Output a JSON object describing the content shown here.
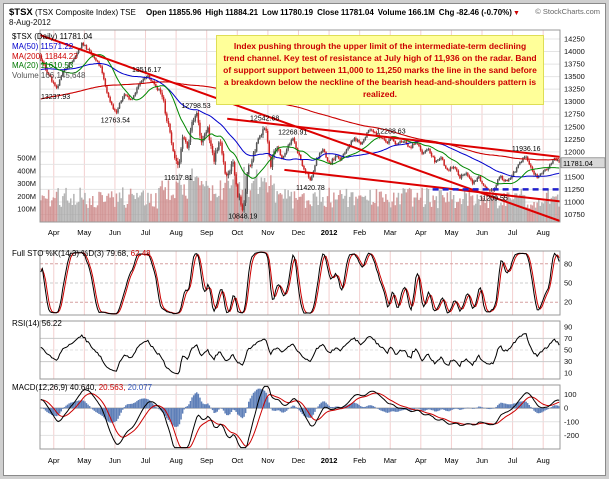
{
  "header": {
    "symbol": "$TSX",
    "name": "(TSX Composite Index) TSE",
    "date": "8-Aug-2012",
    "credit": "© StockCharts.com",
    "quote": [
      {
        "label": "Open",
        "value": "11855.96"
      },
      {
        "label": "High",
        "value": "11884.21"
      },
      {
        "label": "Low",
        "value": "11780.19"
      },
      {
        "label": "Close",
        "value": "11781.04"
      },
      {
        "label": "Volume",
        "value": "166.1M"
      },
      {
        "label": "Chg",
        "value": "-82.46 (-0.70%)",
        "direction": "down"
      }
    ]
  },
  "legend": {
    "rows": [
      {
        "name": "price",
        "label": "$TSX (Daily)",
        "value": "11781.04",
        "color": "#000000"
      },
      {
        "name": "ma50",
        "label": "MA(50)",
        "value": "11571.22",
        "color": "#0000cc"
      },
      {
        "name": "ma200",
        "label": "MA(200)",
        "value": "11844.23",
        "color": "#cc0000"
      },
      {
        "name": "ma20",
        "label": "MA(20)",
        "value": "11610.53",
        "color": "#007700"
      },
      {
        "name": "volume",
        "label": "Volume",
        "value": "166,145,648",
        "color": "#555555"
      }
    ]
  },
  "annotation": {
    "text": "Index pushing through the upper limit of the intermediate-term declining trend channel. Key test of resistance at July high of 11,936 on the radar. Band of support support between 11,000 to 11,250 marks the line in the sand before a breakdown below the neckline of the bearish head-and-shoulders pattern is realized.",
    "bg": "#ffff99",
    "color": "#cc0000"
  },
  "panels": {
    "sto": {
      "title": "Full STO %K(14,3) %D(3)",
      "values": [
        {
          "text": "79.68,",
          "color": "#000000"
        },
        {
          "text": "62.48",
          "color": "#cc0000"
        }
      ]
    },
    "rsi": {
      "title": "RSI(14)",
      "values": [
        {
          "text": "56.22",
          "color": "#000000"
        }
      ]
    },
    "macd": {
      "title": "MACD(12,26,9)",
      "values": [
        {
          "text": "40.640,",
          "color": "#000000"
        },
        {
          "text": "20.563,",
          "color": "#cc0000"
        },
        {
          "text": "20.077",
          "color": "#3355bb"
        }
      ]
    }
  },
  "chart_data": [
    {
      "type": "candlestick+volume",
      "title": "$TSX Daily with MA(20), MA(50), MA(200) and volume overlay",
      "x_labels": [
        "Apr",
        "May",
        "Jun",
        "Jul",
        "Aug",
        "Sep",
        "Oct",
        "Nov",
        "Dec",
        "2012",
        "Feb",
        "Mar",
        "Apr",
        "May",
        "Jun",
        "Jul",
        "Aug"
      ],
      "y_ticks": [
        14250,
        14000,
        13750,
        13500,
        13250,
        13000,
        12750,
        12500,
        12250,
        12000,
        11750,
        11500,
        11250,
        11000,
        10750
      ],
      "ylim": [
        10600,
        14430
      ],
      "volume_ticks": [
        "500M",
        "400M",
        "300M",
        "200M",
        "100M"
      ],
      "last_close": 11781.04,
      "price_anchors": [
        [
          0.0,
          13850
        ],
        [
          0.012,
          13600
        ],
        [
          0.03,
          13237.93
        ],
        [
          0.045,
          13650
        ],
        [
          0.065,
          13850
        ],
        [
          0.08,
          14180
        ],
        [
          0.1,
          13900
        ],
        [
          0.115,
          13700
        ],
        [
          0.13,
          13100
        ],
        [
          0.145,
          12763.54
        ],
        [
          0.16,
          13150
        ],
        [
          0.175,
          13050
        ],
        [
          0.19,
          13350
        ],
        [
          0.205,
          13516.17
        ],
        [
          0.22,
          13350
        ],
        [
          0.235,
          13100
        ],
        [
          0.248,
          12400
        ],
        [
          0.258,
          11900
        ],
        [
          0.266,
          11617.81
        ],
        [
          0.274,
          12350
        ],
        [
          0.282,
          12050
        ],
        [
          0.292,
          12550
        ],
        [
          0.3,
          12798.53
        ],
        [
          0.31,
          12200
        ],
        [
          0.322,
          12450
        ],
        [
          0.334,
          11850
        ],
        [
          0.345,
          12250
        ],
        [
          0.358,
          11450
        ],
        [
          0.37,
          11850
        ],
        [
          0.38,
          11150
        ],
        [
          0.39,
          10848.19
        ],
        [
          0.4,
          11650
        ],
        [
          0.412,
          12000
        ],
        [
          0.422,
          12300
        ],
        [
          0.432,
          12542.68
        ],
        [
          0.444,
          11750
        ],
        [
          0.455,
          12150
        ],
        [
          0.466,
          11850
        ],
        [
          0.476,
          12100
        ],
        [
          0.486,
          12268.91
        ],
        [
          0.497,
          11950
        ],
        [
          0.508,
          11650
        ],
        [
          0.52,
          11420.78
        ],
        [
          0.532,
          11850
        ],
        [
          0.544,
          12050
        ],
        [
          0.556,
          11750
        ],
        [
          0.568,
          11900
        ],
        [
          0.58,
          11850
        ],
        [
          0.592,
          12100
        ],
        [
          0.605,
          12250
        ],
        [
          0.618,
          12180
        ],
        [
          0.635,
          12460
        ],
        [
          0.65,
          12300
        ],
        [
          0.662,
          12280
        ],
        [
          0.668,
          12140
        ],
        [
          0.675,
          12288.63
        ],
        [
          0.685,
          12150
        ],
        [
          0.7,
          12230
        ],
        [
          0.712,
          12080
        ],
        [
          0.724,
          12200
        ],
        [
          0.736,
          11980
        ],
        [
          0.748,
          12060
        ],
        [
          0.76,
          11820
        ],
        [
          0.772,
          11900
        ],
        [
          0.784,
          11620
        ],
        [
          0.796,
          11720
        ],
        [
          0.808,
          11480
        ],
        [
          0.82,
          11580
        ],
        [
          0.832,
          11380
        ],
        [
          0.845,
          11500
        ],
        [
          0.858,
          11280
        ],
        [
          0.872,
          11209.55
        ],
        [
          0.885,
          11520
        ],
        [
          0.898,
          11400
        ],
        [
          0.91,
          11550
        ],
        [
          0.922,
          11750
        ],
        [
          0.935,
          11936.16
        ],
        [
          0.947,
          11620
        ],
        [
          0.958,
          11480
        ],
        [
          0.97,
          11600
        ],
        [
          0.982,
          11720
        ],
        [
          0.992,
          11860
        ],
        [
          1.0,
          11781.04
        ]
      ],
      "key_points": [
        {
          "label": "13237.93",
          "t": 0.03,
          "v": 13237.93,
          "side": "below"
        },
        {
          "label": "13516.17",
          "t": 0.205,
          "v": 13516.17,
          "side": "above"
        },
        {
          "label": "12763.54",
          "t": 0.145,
          "v": 12763.54,
          "side": "below"
        },
        {
          "label": "12798.53",
          "t": 0.3,
          "v": 12798.53,
          "side": "above"
        },
        {
          "label": "12542.68",
          "t": 0.432,
          "v": 12542.68,
          "side": "above"
        },
        {
          "label": "12268.91",
          "t": 0.486,
          "v": 12268.91,
          "side": "above"
        },
        {
          "label": "12288.63",
          "t": 0.675,
          "v": 12288.63,
          "side": "above"
        },
        {
          "label": "11936.16",
          "t": 0.935,
          "v": 11936.16,
          "side": "above"
        },
        {
          "label": "11617.81",
          "t": 0.266,
          "v": 11617.81,
          "side": "below"
        },
        {
          "label": "11420.78",
          "t": 0.52,
          "v": 11420.78,
          "side": "below"
        },
        {
          "label": "11209.55",
          "t": 0.872,
          "v": 11209.55,
          "side": "below"
        },
        {
          "label": "10848.19",
          "t": 0.39,
          "v": 10848.19,
          "side": "below"
        }
      ],
      "trendlines": [
        {
          "name": "primary-downtrend",
          "color": "#dd0000",
          "width": 2,
          "from": [
            0.0,
            14330
          ],
          "to": [
            1.0,
            10620
          ]
        },
        {
          "name": "channel-upper",
          "color": "#dd0000",
          "width": 2,
          "from": [
            0.36,
            12660
          ],
          "to": [
            1.0,
            11900
          ]
        },
        {
          "name": "channel-lower",
          "color": "#dd0000",
          "width": 2,
          "from": [
            0.47,
            11640
          ],
          "to": [
            1.0,
            11011
          ]
        },
        {
          "name": "support-neckline",
          "color": "#2222cc",
          "width": 2.5,
          "dash": true,
          "from": [
            0.755,
            11250
          ],
          "to": [
            1.0,
            11250
          ]
        }
      ]
    },
    {
      "type": "line",
      "name": "Full Stochastic %K(14,3) %D(3)",
      "range": [
        0,
        100
      ],
      "ticks": [
        80,
        50,
        20
      ],
      "overbought": 80,
      "oversold": 20,
      "last": {
        "k": 79.68,
        "d": 62.48
      }
    },
    {
      "type": "line",
      "name": "RSI(14)",
      "range": [
        0,
        100
      ],
      "ticks": [
        90,
        70,
        50,
        30,
        10
      ],
      "guides": [
        70,
        30
      ],
      "last": 56.22
    },
    {
      "type": "line+histogram",
      "name": "MACD(12,26,9)",
      "range": [
        -300,
        170
      ],
      "ticks": [
        100,
        0,
        -100,
        -200
      ],
      "last": {
        "macd": 40.64,
        "signal": 20.563,
        "hist": 20.077
      }
    }
  ]
}
